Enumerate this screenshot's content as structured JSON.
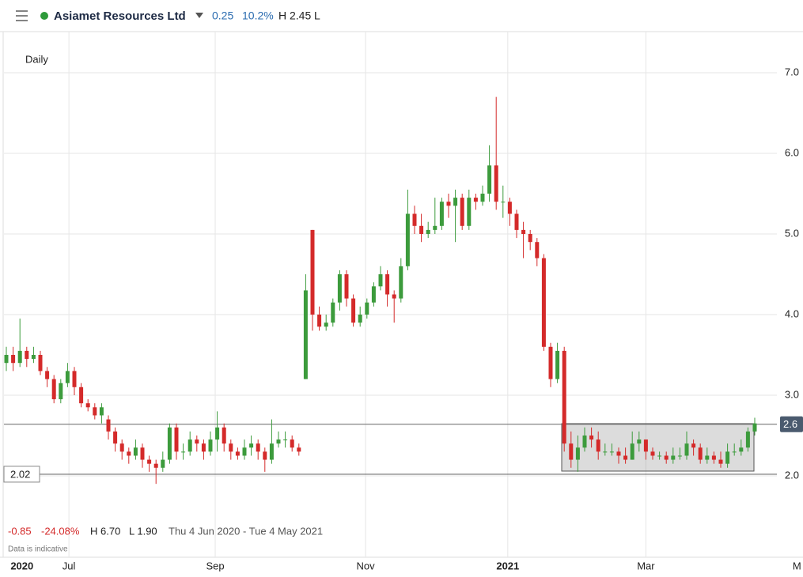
{
  "header": {
    "name": "Asiamet Resources Ltd",
    "change": "0.25",
    "change_pct": "10.2%",
    "high": "H 2.45",
    "low": "L"
  },
  "footer": {
    "change": "-0.85",
    "change_pct": "-24.08%",
    "high": "H 6.70",
    "low": "L 1.90",
    "range": "Thu 4 Jun 2020 - Tue 4 May 2021",
    "note": "Data is indicative"
  },
  "chart_data": {
    "type": "candlestick",
    "interval": "Daily",
    "up_color": "#3c9b3c",
    "down_color": "#d42a2a",
    "categories": [
      null,
      null,
      null,
      null,
      null,
      null,
      null,
      null,
      null,
      null,
      null,
      null,
      null,
      null,
      null,
      null,
      null,
      null,
      null,
      null,
      null,
      null,
      null,
      null,
      null,
      null,
      null,
      null,
      null,
      null,
      null,
      null,
      null,
      null,
      null,
      null,
      null,
      null,
      null,
      null,
      null,
      null,
      null,
      null,
      null,
      null,
      null,
      null,
      null,
      null,
      null,
      null,
      null,
      null,
      null,
      null,
      null,
      null,
      null,
      null,
      null,
      null,
      null,
      null,
      null,
      null,
      null,
      null,
      null,
      null,
      null,
      null,
      null,
      null,
      null,
      null,
      null,
      null,
      null,
      null,
      null,
      null,
      null,
      null,
      null,
      null,
      null,
      null,
      null,
      null,
      null,
      null,
      null,
      null,
      null,
      null,
      null,
      null,
      null,
      null,
      null,
      null,
      null,
      null,
      null,
      null,
      null,
      null,
      null,
      null,
      null
    ],
    "open": [
      3.4,
      3.5,
      3.4,
      3.55,
      3.45,
      3.5,
      3.3,
      3.2,
      2.95,
      3.15,
      3.3,
      3.1,
      2.9,
      2.85,
      2.75,
      2.7,
      2.55,
      2.4,
      2.3,
      2.25,
      2.35,
      2.2,
      2.15,
      2.1,
      2.2,
      2.6,
      2.3,
      2.3,
      2.45,
      2.4,
      2.3,
      2.45,
      2.6,
      2.4,
      2.3,
      2.25,
      2.35,
      2.4,
      2.3,
      2.2,
      2.4,
      2.45,
      2.45,
      2.35,
      3.2,
      5.05,
      4.0,
      3.85,
      3.9,
      4.15,
      4.5,
      4.2,
      3.9,
      4.0,
      4.15,
      4.35,
      4.5,
      4.25,
      4.2,
      4.6,
      5.25,
      5.1,
      5.0,
      5.05,
      5.1,
      5.4,
      5.35,
      5.45,
      5.1,
      5.45,
      5.4,
      5.5,
      5.85,
      5.4,
      5.4,
      5.25,
      5.05,
      5.0,
      4.9,
      4.7,
      3.6,
      3.2,
      3.55,
      2.4,
      2.2,
      2.35,
      2.5,
      2.45,
      2.3,
      2.3,
      2.3,
      2.25,
      2.2,
      2.4,
      2.45,
      2.3,
      2.25,
      2.25,
      2.2,
      2.25,
      2.25,
      2.4,
      2.35,
      2.2,
      2.25,
      2.2,
      2.15,
      2.3,
      2.3,
      2.35,
      2.55
    ],
    "high": [
      3.6,
      3.6,
      3.95,
      3.6,
      3.6,
      3.55,
      3.35,
      3.25,
      3.2,
      3.4,
      3.35,
      3.15,
      2.95,
      2.9,
      2.9,
      2.75,
      2.6,
      2.45,
      2.35,
      2.45,
      2.4,
      2.25,
      2.2,
      2.3,
      2.65,
      2.65,
      2.4,
      2.55,
      2.5,
      2.45,
      2.55,
      2.8,
      2.65,
      2.45,
      2.35,
      2.45,
      2.5,
      2.45,
      2.35,
      2.7,
      2.55,
      2.55,
      2.5,
      2.4,
      4.5,
      5.05,
      4.1,
      4.0,
      4.2,
      4.55,
      4.55,
      4.25,
      4.1,
      4.2,
      4.4,
      4.6,
      4.55,
      4.3,
      4.7,
      5.55,
      5.35,
      5.25,
      5.15,
      5.45,
      5.45,
      5.5,
      5.55,
      5.5,
      5.55,
      5.5,
      5.6,
      6.1,
      6.7,
      5.6,
      5.45,
      5.3,
      5.15,
      5.05,
      4.95,
      4.75,
      3.65,
      3.65,
      3.6,
      2.55,
      2.5,
      2.6,
      2.6,
      2.55,
      2.4,
      2.4,
      2.35,
      2.35,
      2.55,
      2.55,
      2.45,
      2.35,
      2.3,
      2.3,
      2.35,
      2.35,
      2.55,
      2.45,
      2.4,
      2.35,
      2.3,
      2.3,
      2.4,
      2.4,
      2.45,
      2.6,
      2.72
    ],
    "low": [
      3.3,
      3.3,
      3.35,
      3.35,
      3.4,
      3.25,
      3.1,
      2.9,
      2.9,
      3.1,
      3.0,
      2.85,
      2.8,
      2.7,
      2.65,
      2.45,
      2.3,
      2.2,
      2.15,
      2.2,
      2.1,
      2.05,
      1.9,
      2.05,
      2.15,
      2.2,
      2.2,
      2.25,
      2.3,
      2.2,
      2.25,
      2.3,
      2.3,
      2.2,
      2.2,
      2.2,
      2.25,
      2.2,
      2.05,
      2.15,
      2.35,
      2.35,
      2.3,
      2.25,
      3.2,
      3.8,
      3.8,
      3.8,
      3.85,
      4.05,
      4.1,
      3.85,
      3.85,
      3.95,
      4.1,
      4.3,
      4.1,
      3.9,
      4.15,
      4.55,
      5.0,
      4.9,
      4.95,
      5.0,
      5.05,
      5.2,
      4.9,
      5.05,
      5.05,
      5.3,
      5.35,
      5.4,
      5.3,
      5.2,
      5.1,
      4.95,
      4.7,
      4.8,
      4.6,
      3.55,
      3.1,
      3.15,
      2.3,
      2.1,
      2.05,
      2.3,
      2.35,
      2.2,
      2.25,
      2.25,
      2.15,
      2.15,
      2.2,
      2.3,
      2.2,
      2.2,
      2.2,
      2.15,
      2.15,
      2.2,
      2.2,
      2.25,
      2.15,
      2.15,
      2.15,
      2.1,
      2.1,
      2.25,
      2.25,
      2.3,
      2.5
    ],
    "close": [
      3.5,
      3.4,
      3.55,
      3.45,
      3.5,
      3.3,
      3.2,
      2.95,
      3.15,
      3.3,
      3.1,
      2.9,
      2.85,
      2.75,
      2.85,
      2.55,
      2.4,
      2.3,
      2.25,
      2.35,
      2.2,
      2.15,
      2.1,
      2.2,
      2.6,
      2.3,
      2.3,
      2.45,
      2.4,
      2.3,
      2.45,
      2.6,
      2.4,
      2.3,
      2.25,
      2.35,
      2.4,
      2.3,
      2.2,
      2.4,
      2.45,
      2.45,
      2.35,
      2.3,
      4.3,
      4.0,
      3.85,
      3.9,
      4.15,
      4.5,
      4.2,
      3.9,
      4.0,
      4.15,
      4.35,
      4.5,
      4.25,
      4.2,
      4.6,
      5.25,
      5.1,
      5.0,
      5.05,
      5.1,
      5.4,
      5.35,
      5.45,
      5.1,
      5.45,
      5.4,
      5.5,
      5.85,
      5.4,
      5.4,
      5.25,
      5.05,
      5.0,
      4.9,
      4.7,
      3.6,
      3.2,
      3.55,
      2.4,
      2.2,
      2.35,
      2.5,
      2.45,
      2.3,
      2.3,
      2.3,
      2.25,
      2.2,
      2.4,
      2.45,
      2.3,
      2.25,
      2.25,
      2.2,
      2.25,
      2.25,
      2.4,
      2.35,
      2.2,
      2.25,
      2.2,
      2.15,
      2.3,
      2.3,
      2.35,
      2.55,
      2.65
    ],
    "xticks": [
      {
        "value": 2.3,
        "label": "2020"
      },
      {
        "value": 9.2,
        "label": "Jul"
      },
      {
        "value": 30.7,
        "label": "Sep"
      },
      {
        "value": 52.8,
        "label": "Nov"
      },
      {
        "value": 73.7,
        "label": "2021"
      },
      {
        "value": 94,
        "label": "Mar"
      },
      {
        "value": 116.2,
        "label": "M"
      }
    ],
    "ylim": [
      0.99,
      7.51
    ],
    "yticks": [
      {
        "value": 2,
        "label": "2.0"
      },
      {
        "value": 3,
        "label": "3.0"
      },
      {
        "value": 4,
        "label": "4.0"
      },
      {
        "value": 5,
        "label": "5.0"
      },
      {
        "value": 6,
        "label": "6.0"
      },
      {
        "value": 7,
        "label": "7.0"
      }
    ],
    "grid": true,
    "price_lines": [
      {
        "value": 2.64,
        "label": "2.6",
        "side": "right"
      },
      {
        "value": 2.02,
        "label": "2.02",
        "side": "left"
      }
    ]
  }
}
